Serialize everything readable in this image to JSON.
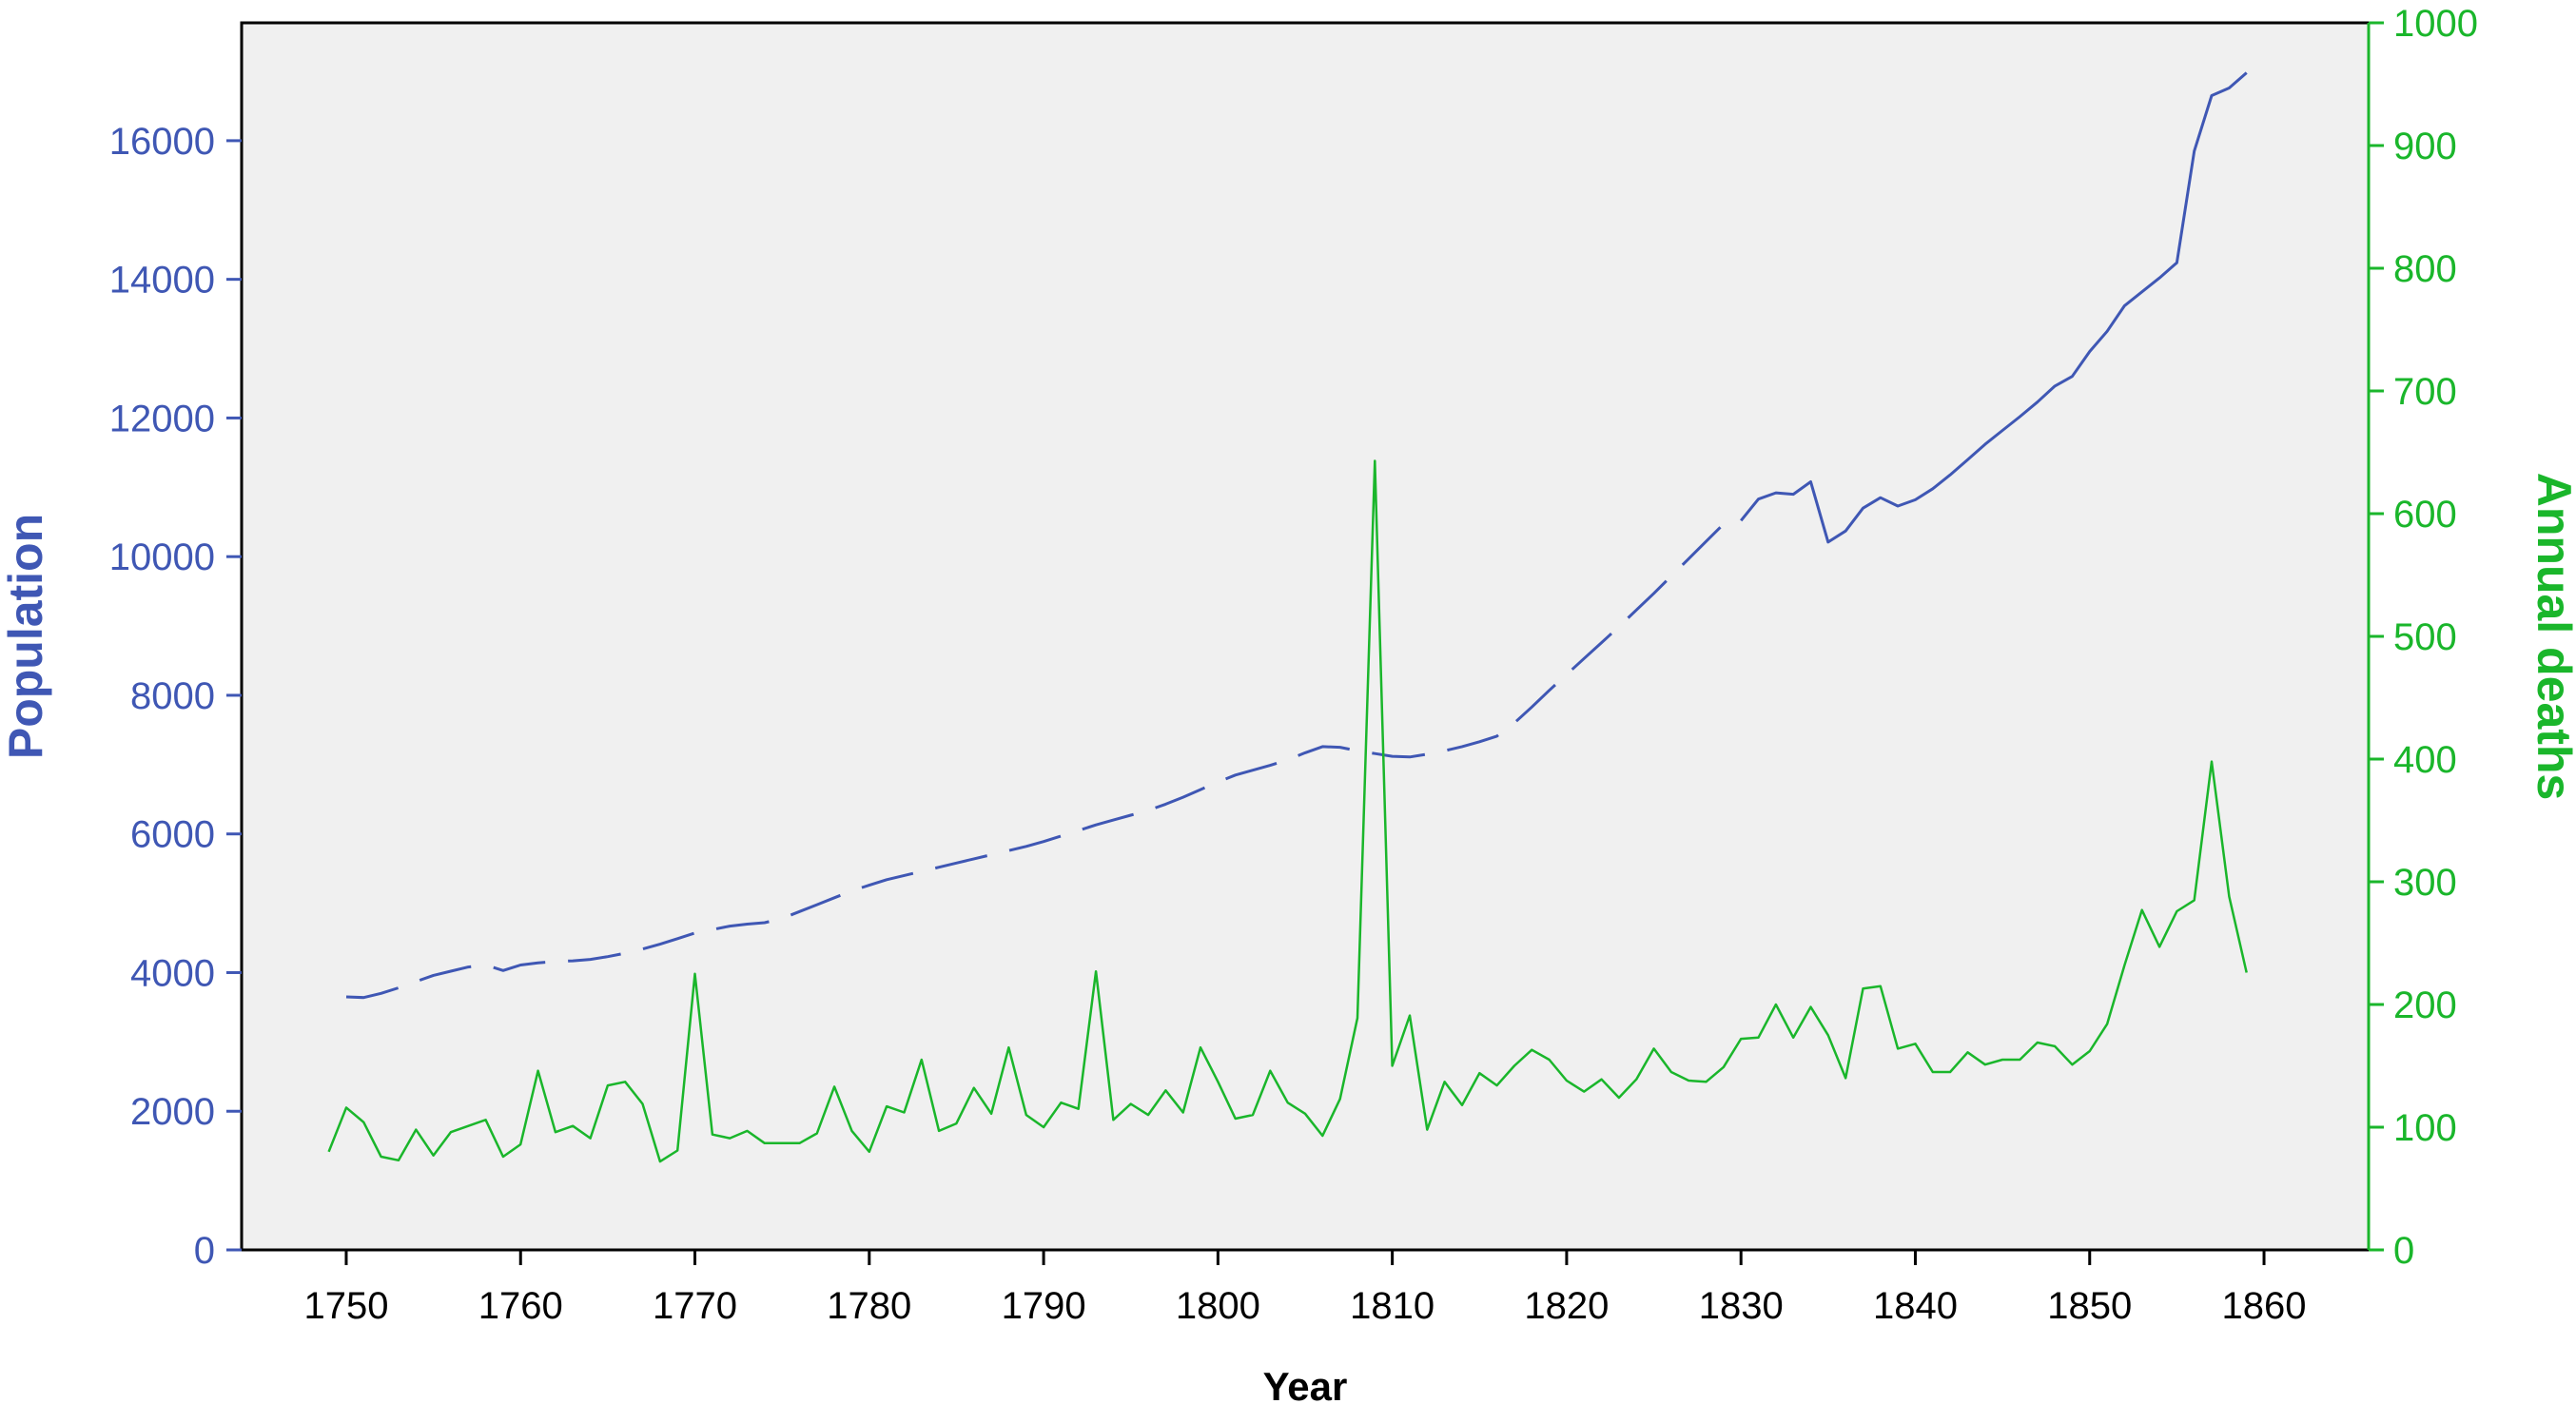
{
  "chart_data": {
    "type": "line",
    "xlabel": "Year",
    "x_ticks": [
      "1750",
      "1760",
      "1770",
      "1780",
      "1790",
      "1800",
      "1810",
      "1820",
      "1830",
      "1840",
      "1850",
      "1860"
    ],
    "xlim": [
      1744,
      1866
    ],
    "y_left": {
      "label": "Population",
      "color": "#3f57b4",
      "ylim": [
        0,
        17700
      ],
      "ticks": [
        "0",
        "2000",
        "4000",
        "6000",
        "8000",
        "10000",
        "12000",
        "14000",
        "16000"
      ]
    },
    "y_right": {
      "label": "Annual deaths",
      "color": "#1ab62b",
      "ylim": [
        0,
        1000
      ],
      "ticks": [
        "0",
        "100",
        "200",
        "300",
        "400",
        "500",
        "600",
        "700",
        "800",
        "900",
        "1000"
      ]
    },
    "grid": false,
    "plot_background": "#f0f0f0",
    "series": [
      {
        "axis": "left",
        "style": "dashed-then-solid",
        "solid_from_year": 1830,
        "color": "#3f57b4",
        "x": [
          1750,
          1751,
          1752,
          1753,
          1754,
          1755,
          1756,
          1757,
          1758,
          1759,
          1760,
          1761,
          1762,
          1763,
          1764,
          1765,
          1766,
          1767,
          1768,
          1769,
          1770,
          1771,
          1772,
          1773,
          1774,
          1775,
          1776,
          1777,
          1778,
          1779,
          1780,
          1781,
          1782,
          1783,
          1784,
          1785,
          1786,
          1787,
          1788,
          1789,
          1790,
          1791,
          1792,
          1793,
          1794,
          1795,
          1796,
          1797,
          1798,
          1799,
          1800,
          1801,
          1802,
          1803,
          1804,
          1805,
          1806,
          1807,
          1808,
          1809,
          1810,
          1811,
          1812,
          1813,
          1814,
          1815,
          1816,
          1817,
          1818,
          1819,
          1820,
          1821,
          1822,
          1823,
          1824,
          1825,
          1826,
          1827,
          1828,
          1829,
          1830,
          1831,
          1832,
          1833,
          1834,
          1835,
          1836,
          1837,
          1838,
          1839,
          1840,
          1841,
          1842,
          1843,
          1844,
          1845,
          1846,
          1847,
          1848,
          1849,
          1850,
          1851,
          1852,
          1853,
          1854,
          1855,
          1856,
          1857,
          1858,
          1859
        ],
        "y": [
          3650,
          3640,
          3700,
          3780,
          3870,
          3960,
          4020,
          4080,
          4110,
          4030,
          4110,
          4140,
          4160,
          4170,
          4190,
          4230,
          4280,
          4340,
          4410,
          4490,
          4570,
          4620,
          4670,
          4700,
          4720,
          4780,
          4880,
          4980,
          5080,
          5180,
          5260,
          5340,
          5400,
          5460,
          5520,
          5580,
          5640,
          5700,
          5760,
          5820,
          5890,
          5970,
          6050,
          6130,
          6200,
          6270,
          6340,
          6430,
          6530,
          6640,
          6750,
          6850,
          6920,
          6990,
          7070,
          7170,
          7260,
          7250,
          7200,
          7160,
          7120,
          7110,
          7150,
          7200,
          7260,
          7330,
          7410,
          7600,
          7830,
          8070,
          8300,
          8530,
          8760,
          8990,
          9230,
          9470,
          9720,
          9970,
          10220,
          10470,
          10520,
          10830,
          10920,
          10900,
          11080,
          10210,
          10370,
          10700,
          10850,
          10730,
          10820,
          10980,
          11180,
          11400,
          11620,
          11820,
          12020,
          12230,
          12460,
          12600,
          12960,
          13250,
          13620,
          13820,
          14020,
          14240,
          15850,
          16650,
          16760,
          16980
        ]
      },
      {
        "axis": "right",
        "style": "solid",
        "color": "#1ab62b",
        "x": [
          1749,
          1750,
          1751,
          1752,
          1753,
          1754,
          1755,
          1756,
          1757,
          1758,
          1759,
          1760,
          1761,
          1762,
          1763,
          1764,
          1765,
          1766,
          1767,
          1768,
          1769,
          1770,
          1771,
          1772,
          1773,
          1774,
          1775,
          1776,
          1777,
          1778,
          1779,
          1780,
          1781,
          1782,
          1783,
          1784,
          1785,
          1786,
          1787,
          1788,
          1789,
          1790,
          1791,
          1792,
          1793,
          1794,
          1795,
          1796,
          1797,
          1798,
          1799,
          1800,
          1801,
          1802,
          1803,
          1804,
          1805,
          1806,
          1807,
          1808,
          1809,
          1810,
          1811,
          1812,
          1813,
          1814,
          1815,
          1816,
          1817,
          1818,
          1819,
          1820,
          1821,
          1822,
          1823,
          1824,
          1825,
          1826,
          1827,
          1828,
          1829,
          1830,
          1831,
          1832,
          1833,
          1834,
          1835,
          1836,
          1837,
          1838,
          1839,
          1840,
          1841,
          1842,
          1843,
          1844,
          1845,
          1846,
          1847,
          1848,
          1849,
          1850,
          1851,
          1852,
          1853,
          1854,
          1855,
          1856,
          1857,
          1858,
          1859
        ],
        "y": [
          80,
          116,
          104,
          76,
          73,
          98,
          77,
          96,
          101,
          106,
          76,
          86,
          146,
          96,
          101,
          91,
          134,
          137,
          119,
          72,
          81,
          225,
          94,
          91,
          97,
          87,
          87,
          87,
          95,
          133,
          97,
          80,
          117,
          112,
          155,
          97,
          103,
          132,
          111,
          165,
          110,
          100,
          120,
          115,
          227,
          106,
          119,
          110,
          130,
          112,
          165,
          137,
          107,
          110,
          146,
          120,
          111,
          93,
          123,
          189,
          643,
          150,
          191,
          98,
          137,
          118,
          144,
          134,
          150,
          163,
          155,
          138,
          129,
          139,
          124,
          139,
          164,
          145,
          138,
          137,
          149,
          172,
          173,
          200,
          173,
          198,
          175,
          140,
          213,
          215,
          164,
          168,
          145,
          145,
          161,
          151,
          155,
          155,
          169,
          166,
          151,
          162,
          184,
          232,
          277,
          247,
          276,
          285,
          398,
          288,
          226
        ]
      }
    ]
  }
}
